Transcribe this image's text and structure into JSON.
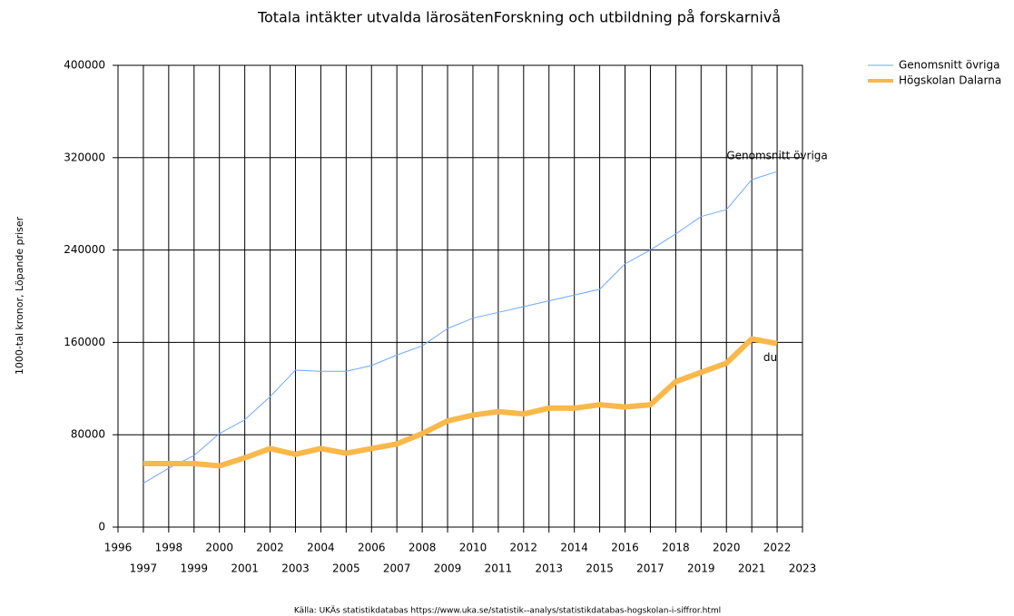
{
  "chart_data": {
    "type": "line",
    "title": "Totala intäkter utvalda lärosätenForskning och utbildning på forskarnivå",
    "y_label": "1000-tal kronor, Löpande priser",
    "source": "Källa: UKÄs statistikdatabas https://www.uka.se/statistik--analys/statistikdatabas-hogskolan-i-siffror.html",
    "x": [
      1997,
      1998,
      1999,
      2000,
      2001,
      2002,
      2003,
      2004,
      2005,
      2006,
      2007,
      2008,
      2009,
      2010,
      2011,
      2012,
      2013,
      2014,
      2015,
      2016,
      2017,
      2018,
      2019,
      2020,
      2021,
      2022
    ],
    "series": [
      {
        "name": "Genomsnitt övriga",
        "color": "#6fa8ff",
        "width": 1,
        "annotation": "Genomsnitt övriga",
        "values": [
          38000,
          51000,
          62000,
          81000,
          93000,
          113000,
          136000,
          135000,
          135000,
          140000,
          149000,
          157000,
          172000,
          181000,
          186000,
          191000,
          196000,
          201000,
          206000,
          228000,
          240000,
          254000,
          269000,
          275000,
          301000,
          308000
        ]
      },
      {
        "name": "Högskolan Dalarna",
        "color": "#f9b84a",
        "width": 6,
        "annotation": "du",
        "values": [
          55000,
          55000,
          55000,
          53000,
          60000,
          68000,
          63000,
          68000,
          64000,
          68000,
          72000,
          81000,
          92000,
          97000,
          100000,
          98000,
          103000,
          103000,
          106000,
          104000,
          106000,
          126000,
          134000,
          142000,
          163000,
          159000
        ]
      }
    ],
    "xlim": [
      1996,
      2023
    ],
    "xticks": [
      1996,
      1997,
      1998,
      1999,
      2000,
      2001,
      2002,
      2003,
      2004,
      2005,
      2006,
      2007,
      2008,
      2009,
      2010,
      2011,
      2012,
      2013,
      2014,
      2015,
      2016,
      2017,
      2018,
      2019,
      2020,
      2021,
      2022,
      2023
    ],
    "ylim": [
      0,
      400000
    ],
    "yticks": [
      0,
      80000,
      160000,
      240000,
      320000,
      400000
    ],
    "grid": true,
    "legend": "top-right"
  }
}
